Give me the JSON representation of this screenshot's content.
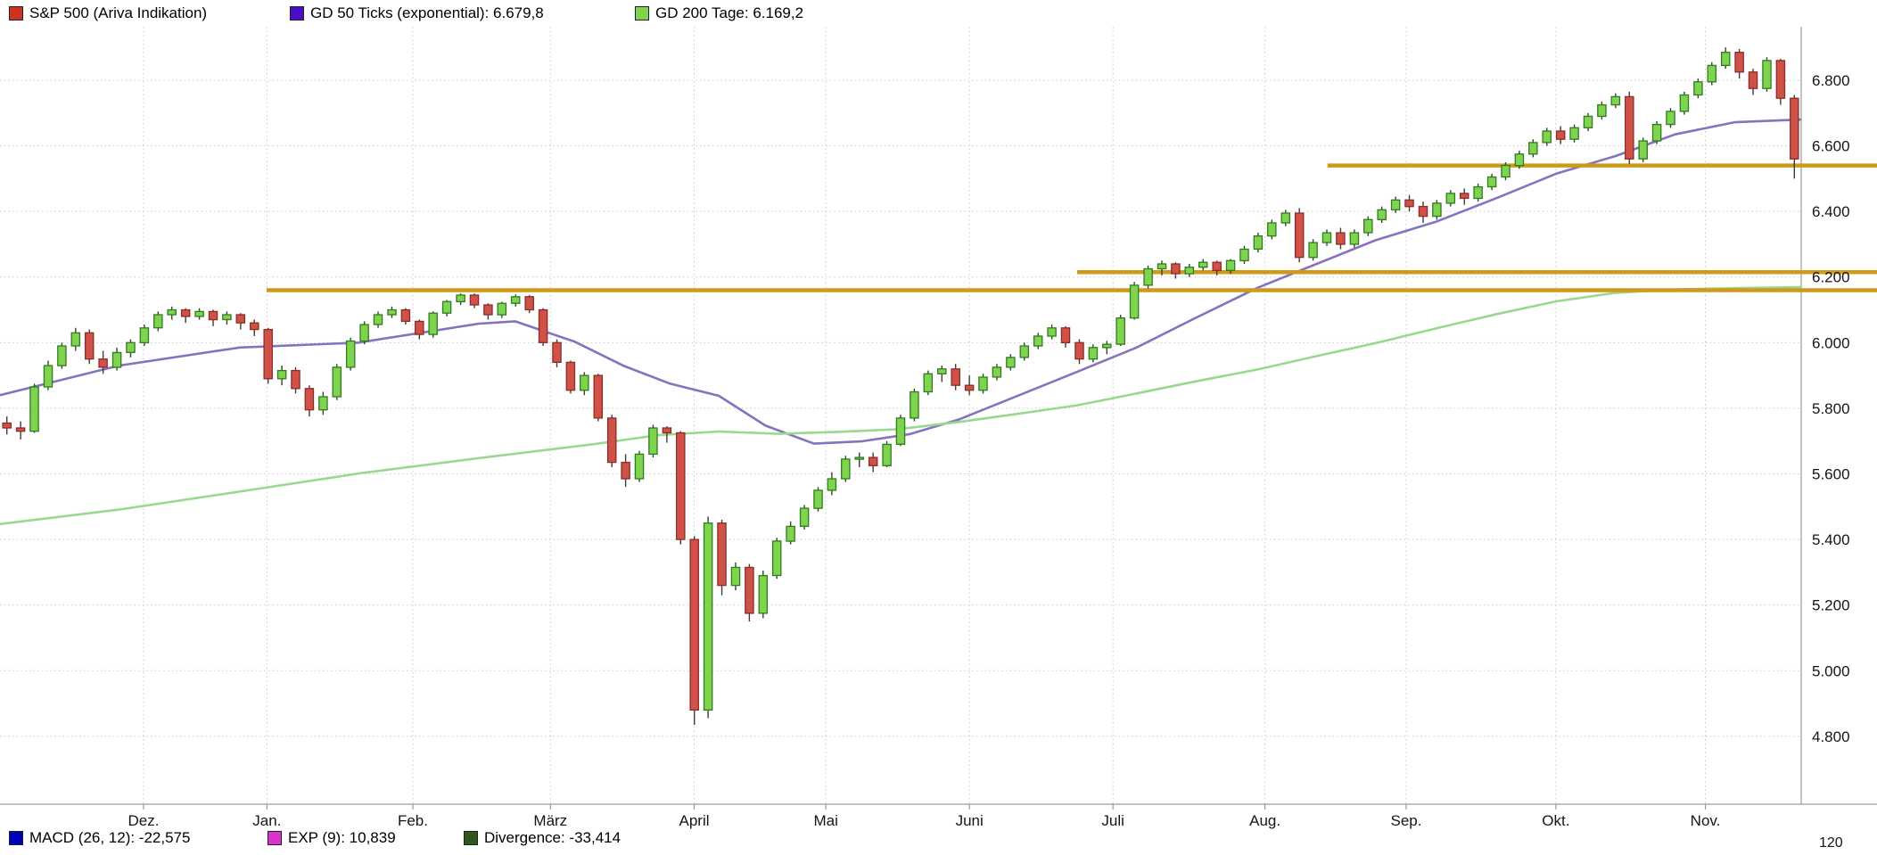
{
  "legend_top": {
    "items": [
      {
        "label": "S&P 500 (Ariva Indikation)",
        "color": "#cc3322"
      },
      {
        "label": "GD 50 Ticks (exponential): 6.679,8",
        "color": "#4a0fc4"
      },
      {
        "label": "GD 200 Tage: 6.169,2",
        "color": "#7ed34f"
      }
    ]
  },
  "legend_bottom": {
    "items": [
      {
        "label": "MACD (26, 12): -22,575",
        "color": "#0000bb"
      },
      {
        "label": "EXP (9): 10,839",
        "color": "#dd33cc"
      },
      {
        "label": "Divergence: -33,414",
        "color": "#2d5a1b"
      }
    ]
  },
  "macd_axis_label": "120",
  "chart_data": {
    "type": "candlestick",
    "title": "S&P 500 (Ariva Indikation)",
    "subtitle": "Daily candles, approx. one year (Dez to Nov), values in index points",
    "grid": true,
    "legend_position": "top",
    "y_range": [
      4593,
      6963
    ],
    "y_axis": {
      "ticks": [
        {
          "value": 6800,
          "label": "6.800"
        },
        {
          "value": 6600,
          "label": "6.600"
        },
        {
          "value": 6400,
          "label": "6.400"
        },
        {
          "value": 6200,
          "label": "6.200"
        },
        {
          "value": 6000,
          "label": "6.000"
        },
        {
          "value": 5800,
          "label": "5.800"
        },
        {
          "value": 5600,
          "label": "5.600"
        },
        {
          "value": 5400,
          "label": "5.400"
        },
        {
          "value": 5200,
          "label": "5.200"
        },
        {
          "value": 5000,
          "label": "5.000"
        },
        {
          "value": 4800,
          "label": "4.800"
        }
      ]
    },
    "x_axis": {
      "months": [
        {
          "label": "Dez.",
          "pos": 0.0797
        },
        {
          "label": "Jan.",
          "pos": 0.1482
        },
        {
          "label": "Feb.",
          "pos": 0.2292
        },
        {
          "label": "März",
          "pos": 0.3056
        },
        {
          "label": "April",
          "pos": 0.3854
        },
        {
          "label": "Mai",
          "pos": 0.4585
        },
        {
          "label": "Juni",
          "pos": 0.5382
        },
        {
          "label": "Juli",
          "pos": 0.6179
        },
        {
          "label": "Aug.",
          "pos": 0.7023
        },
        {
          "label": "Sep.",
          "pos": 0.7807
        },
        {
          "label": "Okt.",
          "pos": 0.8638
        },
        {
          "label": "Nov.",
          "pos": 0.9468
        }
      ]
    },
    "colors": {
      "up_fill": "#7fd34e",
      "up_stroke": "#2f7d1e",
      "down_fill": "#cf5148",
      "down_stroke": "#8c2d26",
      "wick": "#3d3d3d"
    },
    "h_lines": [
      {
        "name": "support-resistance-6160",
        "value": 6160,
        "from": 0.148,
        "color": "#cf9a18"
      },
      {
        "name": "support-resistance-6215",
        "value": 6215,
        "from": 0.598,
        "color": "#cf9a18"
      },
      {
        "name": "support-resistance-6540",
        "value": 6540,
        "from": 0.737,
        "color": "#cf9a18"
      }
    ],
    "overlays": [
      {
        "id": "gd50-line",
        "name": "GD 50 Ticks (exponential)",
        "current_value": "6.679,8",
        "color": "#8672bd",
        "points": [
          [
            0,
            5840
          ],
          [
            0.066,
            5930
          ],
          [
            0.133,
            5985
          ],
          [
            0.199,
            6000
          ],
          [
            0.266,
            6058
          ],
          [
            0.286,
            6065
          ],
          [
            0.319,
            6003
          ],
          [
            0.346,
            5930
          ],
          [
            0.372,
            5875
          ],
          [
            0.399,
            5838
          ],
          [
            0.425,
            5747
          ],
          [
            0.452,
            5692
          ],
          [
            0.478,
            5699
          ],
          [
            0.505,
            5721
          ],
          [
            0.532,
            5765
          ],
          [
            0.565,
            5838
          ],
          [
            0.598,
            5911
          ],
          [
            0.631,
            5985
          ],
          [
            0.664,
            6076
          ],
          [
            0.698,
            6167
          ],
          [
            0.731,
            6240
          ],
          [
            0.764,
            6313
          ],
          [
            0.797,
            6368
          ],
          [
            0.831,
            6441
          ],
          [
            0.864,
            6515
          ],
          [
            0.897,
            6569
          ],
          [
            0.93,
            6635
          ],
          [
            0.963,
            6672
          ],
          [
            1,
            6680
          ]
        ]
      },
      {
        "id": "gd200-line",
        "name": "GD 200 Tage",
        "current_value": "6.169,2",
        "color": "#98d98e",
        "points": [
          [
            0,
            5447
          ],
          [
            0.066,
            5491
          ],
          [
            0.133,
            5546
          ],
          [
            0.199,
            5601
          ],
          [
            0.266,
            5648
          ],
          [
            0.332,
            5692
          ],
          [
            0.365,
            5718
          ],
          [
            0.399,
            5729
          ],
          [
            0.432,
            5722
          ],
          [
            0.465,
            5728
          ],
          [
            0.498,
            5736
          ],
          [
            0.532,
            5758
          ],
          [
            0.565,
            5783
          ],
          [
            0.598,
            5809
          ],
          [
            0.631,
            5845
          ],
          [
            0.664,
            5882
          ],
          [
            0.698,
            5918
          ],
          [
            0.731,
            5959
          ],
          [
            0.764,
            5999
          ],
          [
            0.797,
            6043
          ],
          [
            0.831,
            6087
          ],
          [
            0.864,
            6126
          ],
          [
            0.897,
            6152
          ],
          [
            0.93,
            6162
          ],
          [
            0.963,
            6166
          ],
          [
            1,
            6169
          ]
        ]
      }
    ],
    "candles": [
      [
        5755,
        5775,
        5720,
        5740
      ],
      [
        5740,
        5760,
        5705,
        5730
      ],
      [
        5730,
        5875,
        5725,
        5865
      ],
      [
        5865,
        5945,
        5855,
        5930
      ],
      [
        5930,
        6000,
        5920,
        5990
      ],
      [
        5990,
        6045,
        5975,
        6030
      ],
      [
        6030,
        6040,
        5935,
        5950
      ],
      [
        5950,
        5975,
        5905,
        5925
      ],
      [
        5925,
        5985,
        5915,
        5970
      ],
      [
        5970,
        6010,
        5955,
        6000
      ],
      [
        6000,
        6055,
        5990,
        6045
      ],
      [
        6045,
        6095,
        6035,
        6085
      ],
      [
        6085,
        6110,
        6070,
        6100
      ],
      [
        6100,
        6105,
        6060,
        6080
      ],
      [
        6080,
        6105,
        6070,
        6095
      ],
      [
        6095,
        6100,
        6050,
        6070
      ],
      [
        6070,
        6095,
        6055,
        6085
      ],
      [
        6085,
        6090,
        6040,
        6060
      ],
      [
        6060,
        6070,
        6020,
        6040
      ],
      [
        6040,
        6045,
        5875,
        5890
      ],
      [
        5890,
        5930,
        5870,
        5915
      ],
      [
        5915,
        5925,
        5845,
        5860
      ],
      [
        5860,
        5870,
        5775,
        5795
      ],
      [
        5795,
        5850,
        5780,
        5835
      ],
      [
        5835,
        5935,
        5825,
        5925
      ],
      [
        5925,
        6015,
        5915,
        6005
      ],
      [
        6005,
        6065,
        5995,
        6055
      ],
      [
        6055,
        6095,
        6045,
        6085
      ],
      [
        6085,
        6110,
        6075,
        6100
      ],
      [
        6100,
        6105,
        6055,
        6065
      ],
      [
        6065,
        6070,
        6010,
        6025
      ],
      [
        6025,
        6095,
        6015,
        6090
      ],
      [
        6090,
        6130,
        6080,
        6125
      ],
      [
        6125,
        6150,
        6115,
        6145
      ],
      [
        6145,
        6150,
        6105,
        6115
      ],
      [
        6115,
        6120,
        6070,
        6085
      ],
      [
        6085,
        6125,
        6075,
        6120
      ],
      [
        6120,
        6147,
        6110,
        6140
      ],
      [
        6140,
        6145,
        6090,
        6100
      ],
      [
        6100,
        6105,
        5990,
        6000
      ],
      [
        6000,
        6010,
        5925,
        5940
      ],
      [
        5940,
        5945,
        5845,
        5855
      ],
      [
        5855,
        5910,
        5840,
        5900
      ],
      [
        5900,
        5905,
        5760,
        5770
      ],
      [
        5770,
        5780,
        5620,
        5635
      ],
      [
        5635,
        5660,
        5560,
        5585
      ],
      [
        5585,
        5670,
        5575,
        5660
      ],
      [
        5660,
        5750,
        5650,
        5740
      ],
      [
        5740,
        5745,
        5695,
        5725
      ],
      [
        5725,
        5730,
        5385,
        5400
      ],
      [
        5400,
        5410,
        4835,
        4880
      ],
      [
        4880,
        5470,
        4855,
        5450
      ],
      [
        5450,
        5460,
        5230,
        5260
      ],
      [
        5260,
        5330,
        5245,
        5315
      ],
      [
        5315,
        5325,
        5150,
        5175
      ],
      [
        5175,
        5305,
        5160,
        5290
      ],
      [
        5290,
        5405,
        5280,
        5395
      ],
      [
        5395,
        5455,
        5385,
        5440
      ],
      [
        5440,
        5505,
        5430,
        5495
      ],
      [
        5495,
        5560,
        5485,
        5550
      ],
      [
        5550,
        5605,
        5535,
        5585
      ],
      [
        5585,
        5655,
        5575,
        5645
      ],
      [
        5645,
        5665,
        5620,
        5650
      ],
      [
        5650,
        5665,
        5605,
        5625
      ],
      [
        5625,
        5700,
        5620,
        5690
      ],
      [
        5690,
        5780,
        5685,
        5770
      ],
      [
        5770,
        5860,
        5760,
        5850
      ],
      [
        5850,
        5915,
        5840,
        5905
      ],
      [
        5905,
        5930,
        5880,
        5920
      ],
      [
        5920,
        5935,
        5855,
        5870
      ],
      [
        5870,
        5900,
        5840,
        5855
      ],
      [
        5855,
        5905,
        5845,
        5895
      ],
      [
        5895,
        5935,
        5885,
        5925
      ],
      [
        5925,
        5965,
        5915,
        5955
      ],
      [
        5955,
        6000,
        5945,
        5990
      ],
      [
        5990,
        6030,
        5980,
        6020
      ],
      [
        6020,
        6055,
        6010,
        6045
      ],
      [
        6045,
        6050,
        5985,
        6000
      ],
      [
        6000,
        6010,
        5935,
        5950
      ],
      [
        5950,
        5995,
        5940,
        5985
      ],
      [
        5985,
        6005,
        5965,
        5995
      ],
      [
        5995,
        6085,
        5990,
        6075
      ],
      [
        6075,
        6185,
        6070,
        6175
      ],
      [
        6175,
        6235,
        6165,
        6225
      ],
      [
        6225,
        6250,
        6205,
        6240
      ],
      [
        6240,
        6245,
        6195,
        6210
      ],
      [
        6210,
        6240,
        6200,
        6230
      ],
      [
        6230,
        6255,
        6220,
        6245
      ],
      [
        6245,
        6250,
        6205,
        6220
      ],
      [
        6220,
        6255,
        6210,
        6250
      ],
      [
        6250,
        6295,
        6240,
        6285
      ],
      [
        6285,
        6335,
        6275,
        6325
      ],
      [
        6325,
        6375,
        6315,
        6365
      ],
      [
        6365,
        6405,
        6355,
        6395
      ],
      [
        6395,
        6410,
        6245,
        6260
      ],
      [
        6260,
        6315,
        6250,
        6305
      ],
      [
        6305,
        6345,
        6295,
        6335
      ],
      [
        6335,
        6350,
        6285,
        6300
      ],
      [
        6300,
        6345,
        6290,
        6335
      ],
      [
        6335,
        6385,
        6325,
        6375
      ],
      [
        6375,
        6415,
        6365,
        6405
      ],
      [
        6405,
        6445,
        6395,
        6435
      ],
      [
        6435,
        6450,
        6400,
        6415
      ],
      [
        6415,
        6430,
        6365,
        6385
      ],
      [
        6385,
        6435,
        6375,
        6425
      ],
      [
        6425,
        6465,
        6415,
        6455
      ],
      [
        6455,
        6470,
        6420,
        6440
      ],
      [
        6440,
        6485,
        6430,
        6475
      ],
      [
        6475,
        6515,
        6465,
        6505
      ],
      [
        6505,
        6550,
        6495,
        6540
      ],
      [
        6540,
        6585,
        6530,
        6575
      ],
      [
        6575,
        6620,
        6565,
        6610
      ],
      [
        6610,
        6655,
        6600,
        6645
      ],
      [
        6645,
        6660,
        6605,
        6620
      ],
      [
        6620,
        6665,
        6610,
        6655
      ],
      [
        6655,
        6700,
        6645,
        6690
      ],
      [
        6690,
        6735,
        6680,
        6725
      ],
      [
        6725,
        6760,
        6715,
        6750
      ],
      [
        6750,
        6765,
        6545,
        6560
      ],
      [
        6560,
        6625,
        6550,
        6615
      ],
      [
        6615,
        6675,
        6605,
        6665
      ],
      [
        6665,
        6715,
        6655,
        6705
      ],
      [
        6705,
        6765,
        6695,
        6755
      ],
      [
        6755,
        6805,
        6745,
        6795
      ],
      [
        6795,
        6855,
        6785,
        6845
      ],
      [
        6845,
        6900,
        6835,
        6885
      ],
      [
        6885,
        6895,
        6805,
        6825
      ],
      [
        6825,
        6835,
        6755,
        6775
      ],
      [
        6775,
        6870,
        6765,
        6860
      ],
      [
        6860,
        6865,
        6725,
        6745
      ],
      [
        6745,
        6755,
        6500,
        6560
      ]
    ]
  }
}
